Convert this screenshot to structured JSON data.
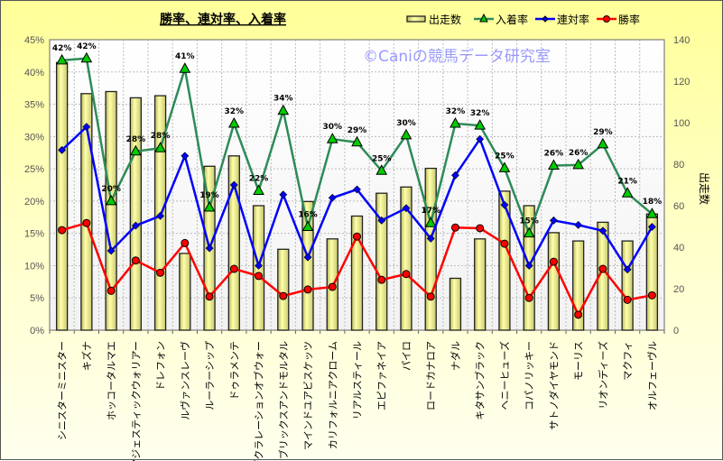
{
  "chart_data": {
    "type": "bar+line",
    "title": "勝率、連対率、入着率",
    "watermark": "©Caniの競馬データ研究室",
    "categories": [
      "シニスターミニスター",
      "キズナ",
      "ホッコータルマエ",
      "マジェスティックウォリアー",
      "ドレフォン",
      "ルヴァンスレーヴ",
      "ルーラーシップ",
      "ドゥラメンテ",
      "デクラレーションオブウォー",
      "ブリックスアンドモルタル",
      "マインドユアビスケッツ",
      "カリフォルニアクローム",
      "リアルスティール",
      "エピファネイア",
      "パイロ",
      "ロードカナロア",
      "ナダル",
      "キタサンブラック",
      "ヘニーヒューズ",
      "コパノリッキー",
      "サトノダイヤモンド",
      "モーリス",
      "リオンディーズ",
      "マクフィ",
      "オルフェーヴル"
    ],
    "left_axis": {
      "min": 0,
      "max": 45,
      "step": 5,
      "suffix": "%"
    },
    "right_axis": {
      "min": 0,
      "max": 140,
      "step": 20,
      "label": "出走数"
    },
    "series": [
      {
        "name": "出走数",
        "type": "bar",
        "axis": "right",
        "color": "#eeee99",
        "values": [
          129,
          114,
          115,
          112,
          113,
          37,
          79,
          84,
          60,
          39,
          62,
          44,
          55,
          66,
          69,
          78,
          25,
          44,
          67,
          60,
          47,
          43,
          52,
          43,
          56
        ]
      },
      {
        "name": "入着率",
        "type": "line",
        "axis": "left",
        "color": "#2e8b57",
        "marker": "triangle",
        "marker_color": "#00cc00",
        "values": [
          41.8,
          42.1,
          20.0,
          27.7,
          28.2,
          40.5,
          19.0,
          32.0,
          21.6,
          34.0,
          16.0,
          29.6,
          29.1,
          24.7,
          30.2,
          16.6,
          32.0,
          31.7,
          25.1,
          15.0,
          25.5,
          25.6,
          28.8,
          21.2,
          18.0
        ],
        "data_labels": [
          "42%",
          "42%",
          "20%",
          "28%",
          "28%",
          "41%",
          "19%",
          "32%",
          "22%",
          "34%",
          "16%",
          "30%",
          "29%",
          "25%",
          "30%",
          "17%",
          "32%",
          "32%",
          "25%",
          "15%",
          "26%",
          "26%",
          "29%",
          "21%",
          "18%"
        ]
      },
      {
        "name": "連対率",
        "type": "line",
        "axis": "left",
        "color": "#0000ff",
        "marker": "diamond",
        "values": [
          27.9,
          31.5,
          12.3,
          16.2,
          17.7,
          27.0,
          12.7,
          22.5,
          10.0,
          21.0,
          11.3,
          20.5,
          21.8,
          17.0,
          18.9,
          14.2,
          24.0,
          29.6,
          19.4,
          10.0,
          17.0,
          16.3,
          15.4,
          9.4,
          16.0
        ]
      },
      {
        "name": "勝率",
        "type": "line",
        "axis": "left",
        "color": "#ff0000",
        "marker": "circle",
        "values": [
          15.5,
          16.6,
          6.1,
          10.8,
          8.9,
          13.5,
          5.2,
          9.5,
          8.4,
          5.3,
          6.3,
          6.7,
          14.5,
          7.8,
          8.7,
          5.2,
          15.9,
          15.8,
          13.4,
          5.0,
          10.6,
          2.4,
          9.5,
          4.7,
          5.4
        ]
      }
    ],
    "legend_position": "top-right",
    "grid": true
  }
}
